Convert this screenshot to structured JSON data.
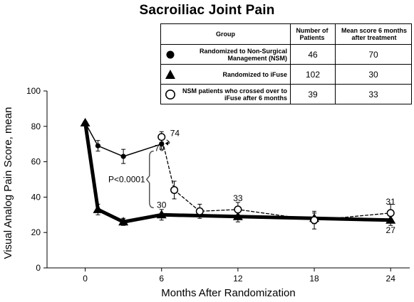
{
  "chart_data": {
    "type": "line",
    "title": "Sacroiliac Joint Pain",
    "xlabel": "Months After Randomization",
    "ylabel": "Visual Analog Pain Score, mean",
    "xlim": [
      -3,
      25.5
    ],
    "ylim": [
      0,
      100
    ],
    "xticks": [
      0,
      6,
      12,
      18,
      24
    ],
    "yticks": [
      0,
      20,
      40,
      60,
      80,
      100
    ],
    "series": [
      {
        "name": "Randomized to Non-Surgical Management (NSM)",
        "marker": "filled-circle",
        "line": "solid-thin",
        "x": [
          0,
          1,
          3,
          6
        ],
        "y": [
          82,
          69,
          63,
          70
        ],
        "error": [
          0,
          3,
          4,
          3
        ]
      },
      {
        "name": "Randomized to iFuse",
        "marker": "filled-triangle",
        "line": "solid-thick",
        "x": [
          0,
          1,
          3,
          6,
          12,
          18,
          24
        ],
        "y": [
          82,
          33,
          26,
          30,
          29,
          28,
          27
        ],
        "error": [
          0,
          3,
          2,
          3,
          3,
          3,
          3
        ]
      },
      {
        "name": "NSM patients who crossed over to iFuse after 6 months",
        "marker": "open-circle",
        "line": "dashed",
        "x": [
          6,
          7,
          9,
          12,
          18,
          24
        ],
        "y": [
          74,
          44,
          32,
          33,
          27,
          31
        ],
        "error": [
          3,
          5,
          4,
          4,
          5,
          5
        ]
      }
    ],
    "annotations": [
      {
        "text": "74",
        "x": 6,
        "y": 74
      },
      {
        "text": "70",
        "x": 6,
        "y": 70
      },
      {
        "text": "30",
        "x": 6,
        "y": 30
      },
      {
        "text": "33",
        "x": 12,
        "y": 33
      },
      {
        "text": "31",
        "x": 24,
        "y": 31
      },
      {
        "text": "27",
        "x": 24,
        "y": 27
      },
      {
        "text": "P<0.0001",
        "x": 6,
        "y": 50
      }
    ],
    "table": {
      "headers": [
        "Group",
        "Number of Patients",
        "Mean score 6 months after treatment"
      ],
      "rows": [
        {
          "group": "Randomized to Non-Surgical Management (NSM)",
          "patients": "46",
          "mean": "70"
        },
        {
          "group": "Randomized to iFuse",
          "patients": "102",
          "mean": "30"
        },
        {
          "group": "NSM patients who crossed over to iFuse after 6 months",
          "patients": "39",
          "mean": "33"
        }
      ]
    },
    "colors": {
      "ink": "#000000",
      "background": "#ffffff"
    }
  }
}
